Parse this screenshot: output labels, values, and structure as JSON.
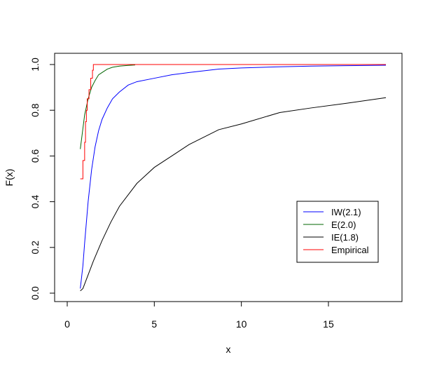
{
  "chart_data": {
    "type": "line",
    "title": "",
    "xlabel": "x",
    "ylabel": "F(x)",
    "xlim": [
      0,
      18.5
    ],
    "ylim": [
      0,
      1
    ],
    "x_ticks": [
      0,
      5,
      10,
      15
    ],
    "x_tick_labels": [
      "0",
      "5",
      "10",
      "15"
    ],
    "y_ticks": [
      0.0,
      0.2,
      0.4,
      0.6,
      0.8,
      1.0
    ],
    "y_tick_labels": [
      "0.0",
      "0.2",
      "0.4",
      "0.6",
      "0.8",
      "1.0"
    ],
    "grid": false,
    "legend_position": "bottom-right",
    "series": [
      {
        "name": "IW(2.1)",
        "color": "#0000ff",
        "step": false,
        "points": [
          [
            0.75,
            0.02
          ],
          [
            0.9,
            0.12
          ],
          [
            1.0,
            0.22
          ],
          [
            1.2,
            0.4
          ],
          [
            1.4,
            0.54
          ],
          [
            1.6,
            0.64
          ],
          [
            1.8,
            0.71
          ],
          [
            2.0,
            0.76
          ],
          [
            2.3,
            0.81
          ],
          [
            2.6,
            0.85
          ],
          [
            3.0,
            0.88
          ],
          [
            3.5,
            0.91
          ],
          [
            4.0,
            0.925
          ],
          [
            5.0,
            0.94
          ],
          [
            6.0,
            0.955
          ],
          [
            7.0,
            0.965
          ],
          [
            8.7,
            0.98
          ],
          [
            10.0,
            0.985
          ],
          [
            12.2,
            0.99
          ],
          [
            14.0,
            0.993
          ],
          [
            16.0,
            0.995
          ],
          [
            18.3,
            0.997
          ]
        ]
      },
      {
        "name": "E(2.0)",
        "color": "#006400",
        "step": false,
        "points": [
          [
            0.75,
            0.63
          ],
          [
            0.9,
            0.72
          ],
          [
            1.0,
            0.78
          ],
          [
            1.2,
            0.85
          ],
          [
            1.4,
            0.9
          ],
          [
            1.6,
            0.93
          ],
          [
            1.8,
            0.955
          ],
          [
            2.0,
            0.965
          ],
          [
            2.3,
            0.98
          ],
          [
            2.6,
            0.988
          ],
          [
            3.0,
            0.993
          ],
          [
            3.5,
            0.996
          ],
          [
            3.9,
            0.998
          ]
        ]
      },
      {
        "name": "IE(1.8)",
        "color": "#000000",
        "step": false,
        "points": [
          [
            0.75,
            0.01
          ],
          [
            0.9,
            0.02
          ],
          [
            1.0,
            0.04
          ],
          [
            1.2,
            0.08
          ],
          [
            1.5,
            0.14
          ],
          [
            2.0,
            0.23
          ],
          [
            2.5,
            0.31
          ],
          [
            3.0,
            0.38
          ],
          [
            3.5,
            0.43
          ],
          [
            4.0,
            0.48
          ],
          [
            5.0,
            0.55
          ],
          [
            6.0,
            0.6
          ],
          [
            7.0,
            0.65
          ],
          [
            8.7,
            0.715
          ],
          [
            10.0,
            0.74
          ],
          [
            12.2,
            0.79
          ],
          [
            14.0,
            0.81
          ],
          [
            16.0,
            0.83
          ],
          [
            18.3,
            0.855
          ]
        ]
      },
      {
        "name": "Empirical",
        "color": "#ff0000",
        "step": true,
        "points": [
          [
            0.75,
            0.5
          ],
          [
            0.9,
            0.58
          ],
          [
            1.0,
            0.66
          ],
          [
            1.05,
            0.75
          ],
          [
            1.1,
            0.8
          ],
          [
            1.15,
            0.85
          ],
          [
            1.25,
            0.89
          ],
          [
            1.35,
            0.94
          ],
          [
            1.45,
            0.975
          ],
          [
            1.5,
            1.0
          ],
          [
            18.3,
            1.0
          ]
        ]
      }
    ]
  }
}
